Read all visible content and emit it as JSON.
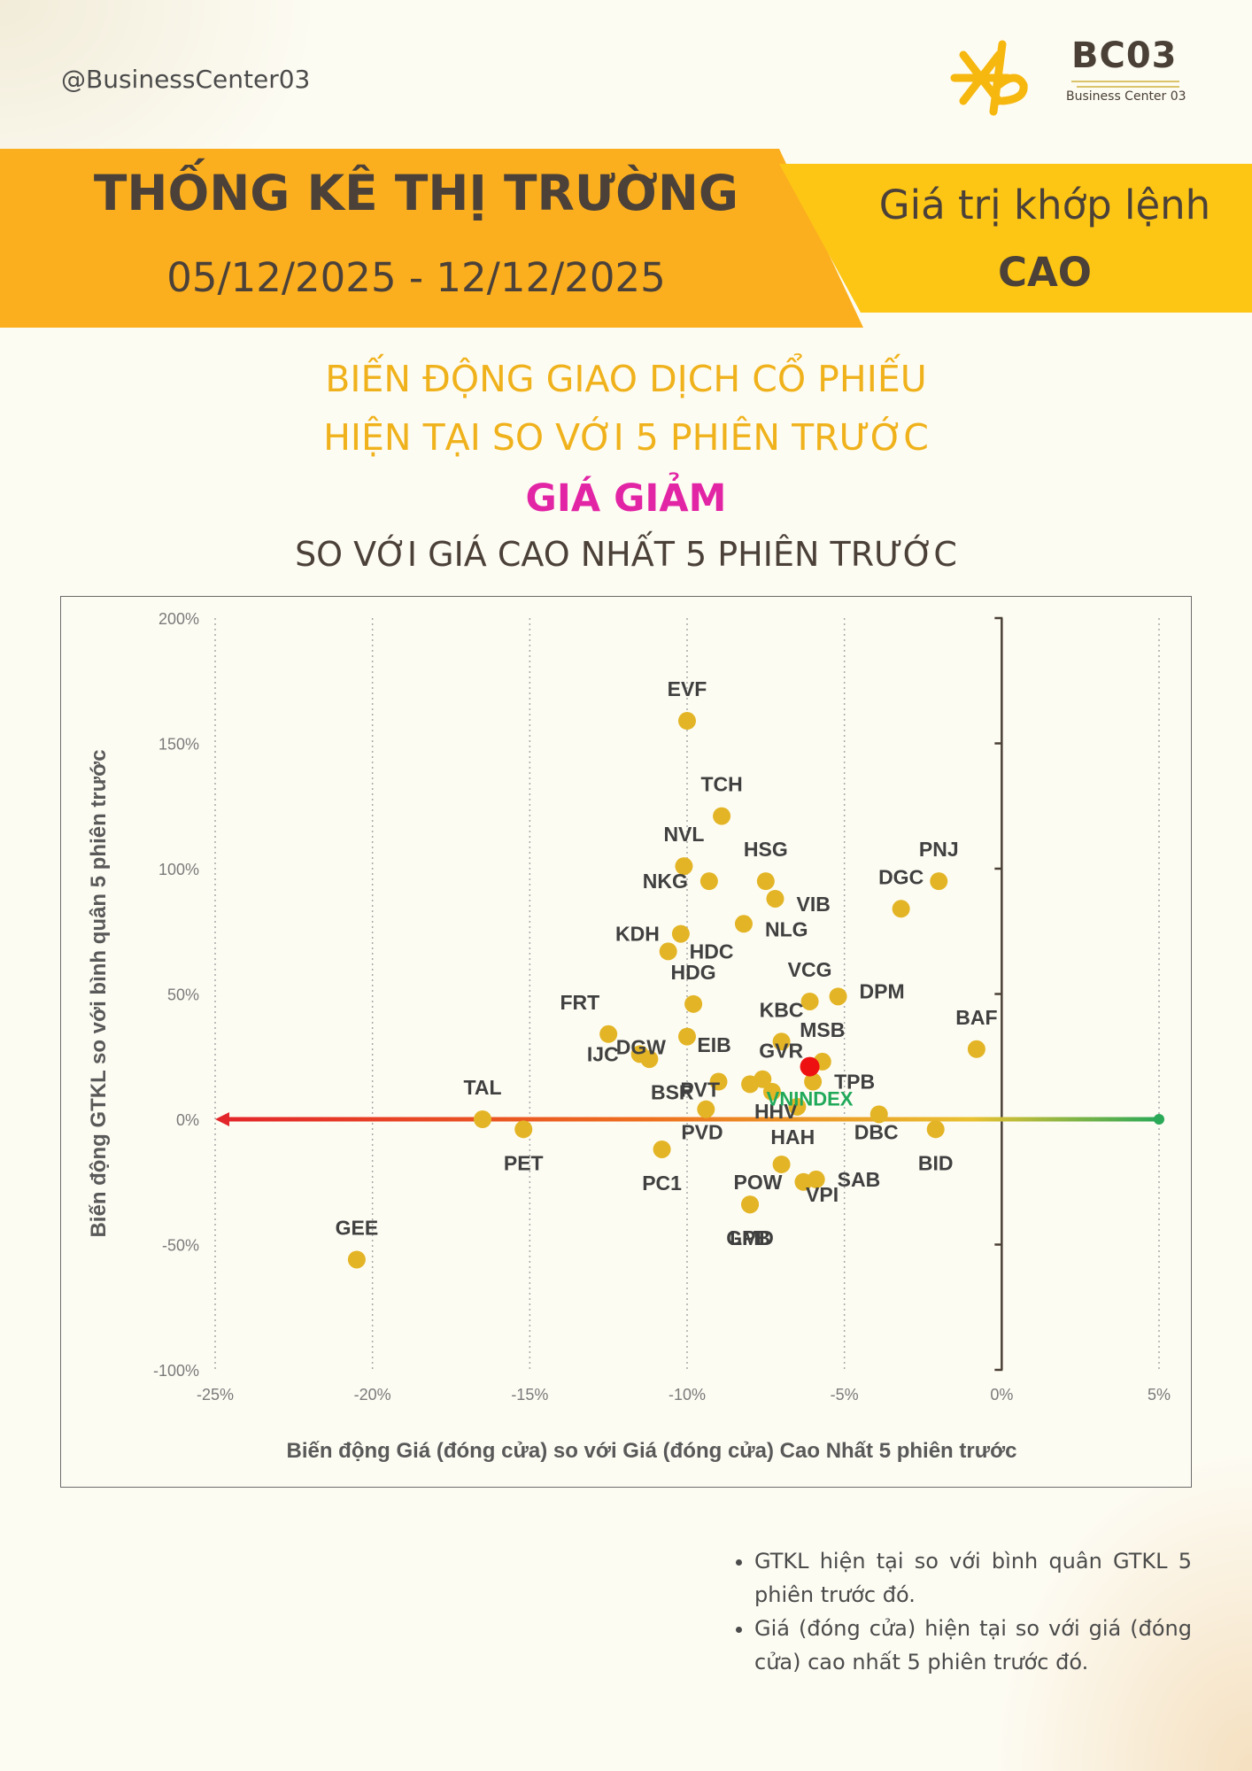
{
  "header": {
    "handle": "@BusinessCenter03",
    "brand_title": "BC03",
    "brand_subtitle": "Business Center 03",
    "banner_title": "THỐNG KÊ THỊ TRƯỜNG",
    "banner_dates": "05/12/2025 - 12/12/2025",
    "banner_right_line1": "Giá trị khớp lệnh",
    "banner_right_line2": "CAO"
  },
  "subtitle": {
    "line1": "BIẾN ĐỘNG GIAO DỊCH CỔ PHIẾU",
    "line2": "HIỆN TẠI SO VỚI 5 PHIÊN TRƯỚC",
    "highlight": "GIÁ GIẢM",
    "line4": "SO VỚI GIÁ CAO NHẤT 5 PHIÊN TRƯỚC"
  },
  "colors": {
    "accent_orange": "#fbaf1f",
    "accent_yellow": "#fdc614",
    "title_gold": "#f0b21c",
    "highlight_magenta": "#e225a5",
    "point": "#e3b526",
    "vnindex_point": "#ee1111",
    "vnindex_label": "#21a95a"
  },
  "chart_data": {
    "type": "scatter",
    "xlabel": "Biến động Giá (đóng cửa) so với Giá (đóng cửa) Cao Nhất 5 phiên trước",
    "ylabel": "Biến động GTKL so với bình quân 5 phiên trước",
    "xlim": [
      -25,
      5
    ],
    "ylim": [
      -100,
      200
    ],
    "x_ticks": [
      -25,
      -20,
      -15,
      -10,
      -5,
      0,
      5
    ],
    "x_tick_labels": [
      "-25%",
      "-20%",
      "-15%",
      "-10%",
      "-5%",
      "0%",
      "5%"
    ],
    "y_ticks": [
      200,
      150,
      100,
      50,
      0,
      -50,
      -100
    ],
    "y_tick_labels": [
      "200%",
      "150%",
      "100%",
      "50%",
      "0%",
      "-50%",
      "-100%"
    ],
    "grid": "vertical dotted",
    "points": [
      {
        "label": "EVF",
        "x": -10.0,
        "y": 159
      },
      {
        "label": "TCH",
        "x": -8.9,
        "y": 121
      },
      {
        "label": "NVL",
        "x": -10.1,
        "y": 101
      },
      {
        "label": "NKG",
        "x": -9.3,
        "y": 95
      },
      {
        "label": "HSG",
        "x": -7.5,
        "y": 95
      },
      {
        "label": "VIB",
        "x": -7.2,
        "y": 88
      },
      {
        "label": "NLG",
        "x": -8.2,
        "y": 78
      },
      {
        "label": "KDH",
        "x": -10.2,
        "y": 74
      },
      {
        "label": "HDC",
        "x": -10.6,
        "y": 67
      },
      {
        "label": "HDG",
        "x": -9.8,
        "y": 46
      },
      {
        "label": "VCG",
        "x": -6.1,
        "y": 47
      },
      {
        "label": "DPM",
        "x": -5.2,
        "y": 49
      },
      {
        "label": "PNJ",
        "x": -2.0,
        "y": 95
      },
      {
        "label": "DGC",
        "x": -3.2,
        "y": 84
      },
      {
        "label": "BAF",
        "x": -0.8,
        "y": 28
      },
      {
        "label": "FRT",
        "x": -12.5,
        "y": 34
      },
      {
        "label": "DGW",
        "x": -10.0,
        "y": 33
      },
      {
        "label": "KBC",
        "x": -7.0,
        "y": 31
      },
      {
        "label": "MSB",
        "x": -5.7,
        "y": 23
      },
      {
        "label": "IJC",
        "x": -11.5,
        "y": 26
      },
      {
        "label": "EIB",
        "x": -11.2,
        "y": 24
      },
      {
        "label": "GVR",
        "x": -7.6,
        "y": 16
      },
      {
        "label": "TPB",
        "x": -6.0,
        "y": 15
      },
      {
        "label": "BSR",
        "x": -9.0,
        "y": 15
      },
      {
        "label": "PVT",
        "x": -8.0,
        "y": 14
      },
      {
        "label": "HHV",
        "x": -7.3,
        "y": 11
      },
      {
        "label": "HAH",
        "x": -6.5,
        "y": 5
      },
      {
        "label": "DBC",
        "x": -3.9,
        "y": 2
      },
      {
        "label": "PVD",
        "x": -9.4,
        "y": 4
      },
      {
        "label": "TAL",
        "x": -16.5,
        "y": 0
      },
      {
        "label": "PET",
        "x": -15.2,
        "y": -4
      },
      {
        "label": "BID",
        "x": -2.1,
        "y": -4
      },
      {
        "label": "VPI",
        "x": -7.0,
        "y": -18
      },
      {
        "label": "PC1",
        "x": -10.8,
        "y": -12
      },
      {
        "label": "POW",
        "x": -6.3,
        "y": -25
      },
      {
        "label": "SAB",
        "x": -5.9,
        "y": -24
      },
      {
        "label": "GMD",
        "x": -8.0,
        "y": -34
      },
      {
        "label": "LPB",
        "x": -8.0,
        "y": -34
      },
      {
        "label": "GEE",
        "x": -20.5,
        "y": -56
      }
    ],
    "reference_point": {
      "label": "VNINDEX",
      "x": -6.1,
      "y": 21
    },
    "annotations": [
      "horizontal gradient arrow along y=0 from x=5% (green) to x=-25% (red)"
    ]
  },
  "notes": [
    "GTKL hiện tại so với bình quân GTKL 5 phiên trước đó.",
    "Giá (đóng cửa) hiện tại so với giá (đóng cửa) cao nhất 5 phiên trước đó."
  ]
}
